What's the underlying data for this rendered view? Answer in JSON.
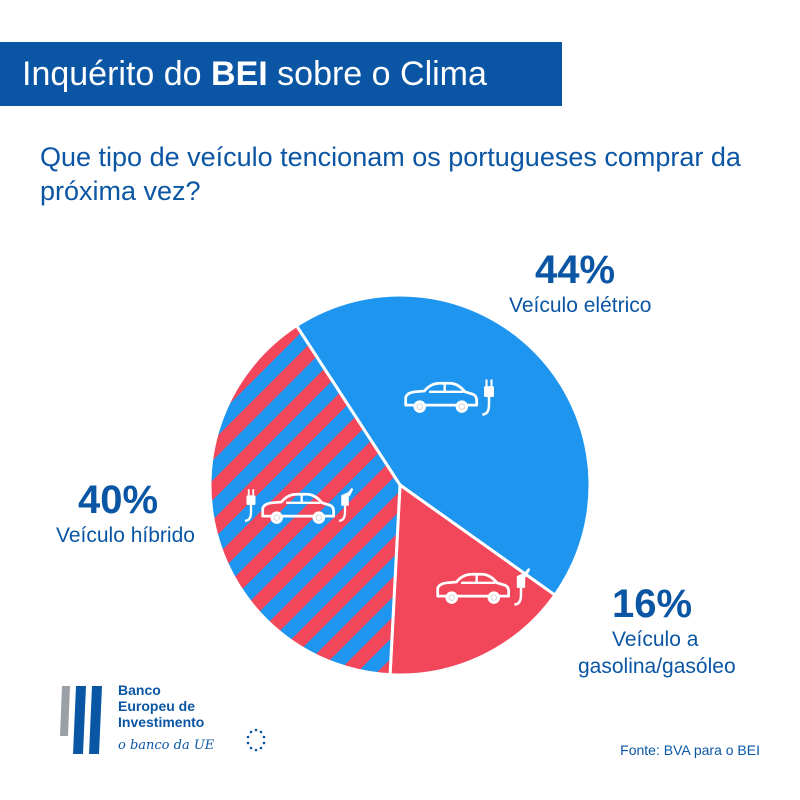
{
  "header": {
    "title_prefix": "Inquérito do ",
    "title_bold": "BEI",
    "title_suffix": " sobre o Clima"
  },
  "question": "Que tipo de veículo tencionam os portugueses comprar da próxima vez?",
  "chart_data": {
    "type": "pie",
    "title": "Que tipo de veículo tencionam os portugueses comprar da próxima vez?",
    "slices": [
      {
        "label": "Veículo elétrico",
        "value": 44,
        "value_label": "44%",
        "color": "#1e96f0",
        "pattern": "solid",
        "icon": "electric-car-icon"
      },
      {
        "label": "Veículo a gasolina/gasóleo",
        "value": 16,
        "value_label": "16%",
        "color": "#f2475a",
        "pattern": "solid",
        "icon": "fuel-car-icon"
      },
      {
        "label": "Veículo híbrido",
        "value": 40,
        "value_label": "40%",
        "color": "#f2475a",
        "stripe_color": "#1e96f0",
        "pattern": "diagonal-stripes",
        "icon": "hybrid-car-icon"
      }
    ],
    "legend": "none"
  },
  "labels": {
    "electric_pct": "44%",
    "electric_name": "Veículo elétrico",
    "hybrid_pct": "40%",
    "hybrid_name": "Veículo híbrido",
    "fuel_pct": "16%",
    "fuel_name_line1": "Veículo a",
    "fuel_name_line2": "gasolina/gasóleo"
  },
  "footer": {
    "logo_line1": "Banco",
    "logo_line2": "Europeu de",
    "logo_line3": "Investimento",
    "tagline": "o banco da UE",
    "source": "Fonte: BVA para o BEI"
  },
  "colors": {
    "brand_blue": "#0b56a4",
    "electric": "#1e96f0",
    "fuel": "#f2475a"
  }
}
